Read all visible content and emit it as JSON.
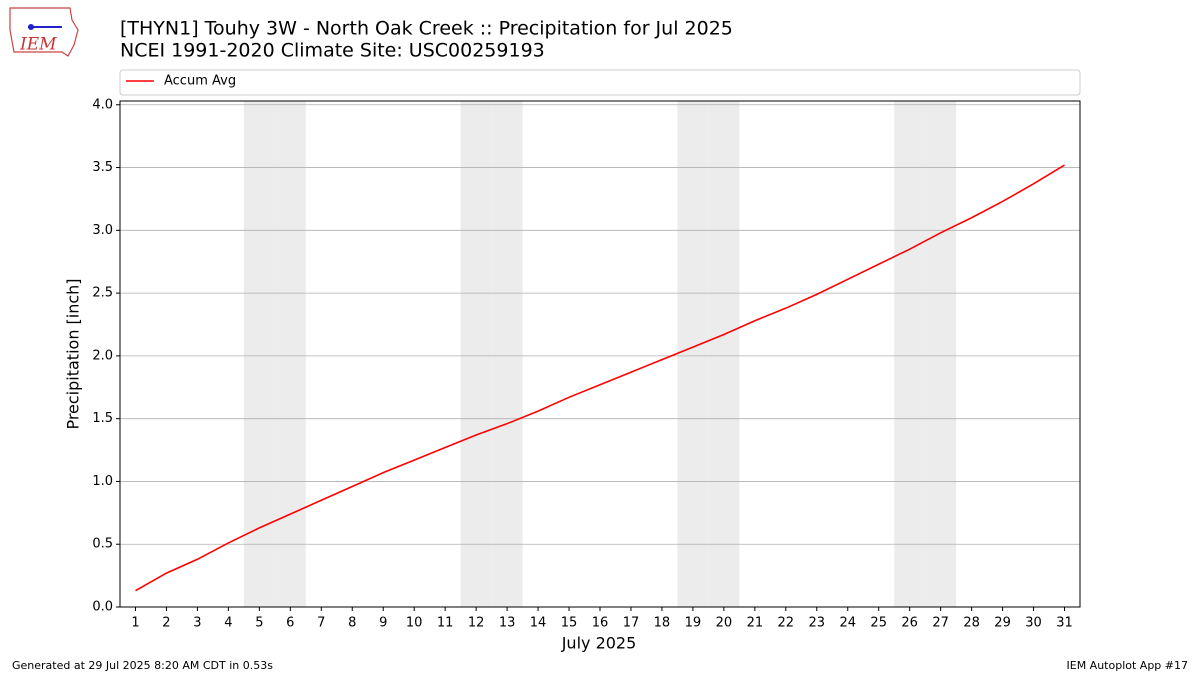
{
  "logo_text": "IEM",
  "chart_data": {
    "type": "line",
    "title": "[THYN1] Touhy 3W - North Oak Creek :: Precipitation for Jul 2025",
    "subtitle": "NCEI 1991-2020 Climate Site: USC00259193",
    "x_label": "July 2025",
    "y_label": "Precipitation [inch]",
    "x": [
      1,
      2,
      3,
      4,
      5,
      6,
      7,
      8,
      9,
      10,
      11,
      12,
      13,
      14,
      15,
      16,
      17,
      18,
      19,
      20,
      21,
      22,
      23,
      24,
      25,
      26,
      27,
      28,
      29,
      30,
      31
    ],
    "series": [
      {
        "name": "Accum Avg",
        "color": "#ff0000",
        "values": [
          0.13,
          0.27,
          0.38,
          0.51,
          0.63,
          0.74,
          0.85,
          0.96,
          1.07,
          1.17,
          1.27,
          1.37,
          1.46,
          1.56,
          1.67,
          1.77,
          1.87,
          1.97,
          2.07,
          2.17,
          2.28,
          2.38,
          2.49,
          2.61,
          2.73,
          2.85,
          2.98,
          3.1,
          3.23,
          3.37,
          3.52
        ]
      }
    ],
    "xlim": [
      0.5,
      31.5
    ],
    "xticks": [
      1,
      2,
      3,
      4,
      5,
      6,
      7,
      8,
      9,
      10,
      11,
      12,
      13,
      14,
      15,
      16,
      17,
      18,
      19,
      20,
      21,
      22,
      23,
      24,
      25,
      26,
      27,
      28,
      29,
      30,
      31
    ],
    "ylim": [
      0,
      4.03
    ],
    "yticks": [
      {
        "value": 0,
        "label": "0.0"
      },
      0.5,
      {
        "value": 1,
        "label": "1.0"
      },
      1.5,
      {
        "value": 2,
        "label": "2.0"
      },
      2.5,
      {
        "value": 3,
        "label": "3.0"
      },
      3.5,
      {
        "value": 4,
        "label": "4.0"
      }
    ],
    "shaded_days": [
      5,
      6,
      12,
      13,
      19,
      20,
      26,
      27
    ],
    "shade_color": "#ececec",
    "grid": true,
    "legend": "top",
    "footer_left": "Generated at 29 Jul 2025 8:20 AM CDT in 0.53s",
    "footer_right": "IEM Autoplot App #17"
  }
}
